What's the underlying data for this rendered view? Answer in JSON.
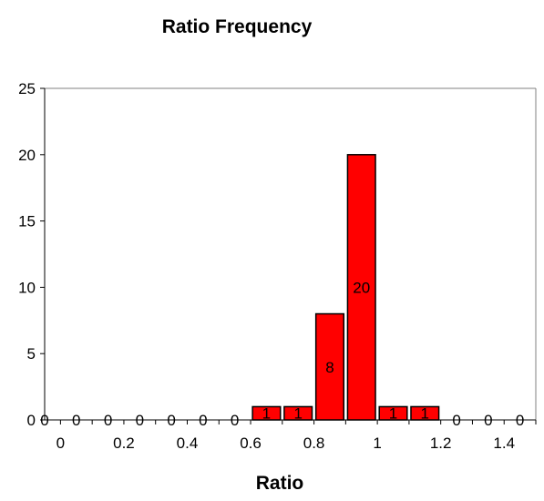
{
  "chart_data": {
    "type": "bar",
    "title": "Ratio Frequency",
    "xlabel": "Ratio",
    "ylabel": "",
    "ylim": [
      0,
      25
    ],
    "yticks": [
      0,
      5,
      10,
      15,
      20,
      25
    ],
    "xlim": [
      -0.05,
      1.5
    ],
    "xticks": [
      "0",
      "0.2",
      "0.4",
      "0.6",
      "0.8",
      "1",
      "1.2",
      "1.4"
    ],
    "bin_width": 0.1,
    "x": [
      0,
      0.1,
      0.2,
      0.3,
      0.4,
      0.5,
      0.6,
      0.7,
      0.8,
      0.9,
      1.0,
      1.1,
      1.2,
      1.3,
      1.4,
      1.5
    ],
    "values": [
      0,
      0,
      0,
      0,
      0,
      0,
      0,
      1,
      1,
      8,
      20,
      1,
      1,
      0,
      0,
      0
    ],
    "bar_color": "#ff0000",
    "grid": false,
    "legend": "none"
  }
}
